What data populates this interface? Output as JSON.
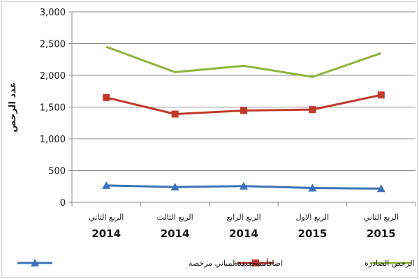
{
  "chart_data": {
    "type": "line",
    "title": "",
    "ylabel": "عدد الرخص",
    "ylim": [
      0,
      3000
    ],
    "yticks": [
      0,
      500,
      1000,
      1500,
      2000,
      2500,
      3000
    ],
    "ytick_labels": [
      "0",
      "500",
      "1,000",
      "1,500",
      "2,000",
      "2,500",
      "3,000"
    ],
    "categories": [
      {
        "quarter": "الربع الثاني",
        "year": "2014"
      },
      {
        "quarter": "الربع الثالث",
        "year": "2014"
      },
      {
        "quarter": "الربع الرابع",
        "year": "2014"
      },
      {
        "quarter": "الربع الاول",
        "year": "2015"
      },
      {
        "quarter": "الربع الثاني",
        "year": "2015"
      }
    ],
    "series": [
      {
        "name": "الرخص الصادرة",
        "color": "#8DB63C",
        "marker": "none",
        "values": [
          2450,
          2050,
          2150,
          1975,
          2350
        ]
      },
      {
        "name": "أبنية جديدة",
        "color": "#C0392B",
        "marker": "square",
        "values": [
          1650,
          1390,
          1445,
          1460,
          1690
        ]
      },
      {
        "name": "اضافات جديدة لمباني مرخصة",
        "color": "#3A73B8",
        "marker": "triangle",
        "values": [
          265,
          240,
          255,
          225,
          215
        ]
      }
    ],
    "grid": true,
    "legend": "bottom"
  }
}
